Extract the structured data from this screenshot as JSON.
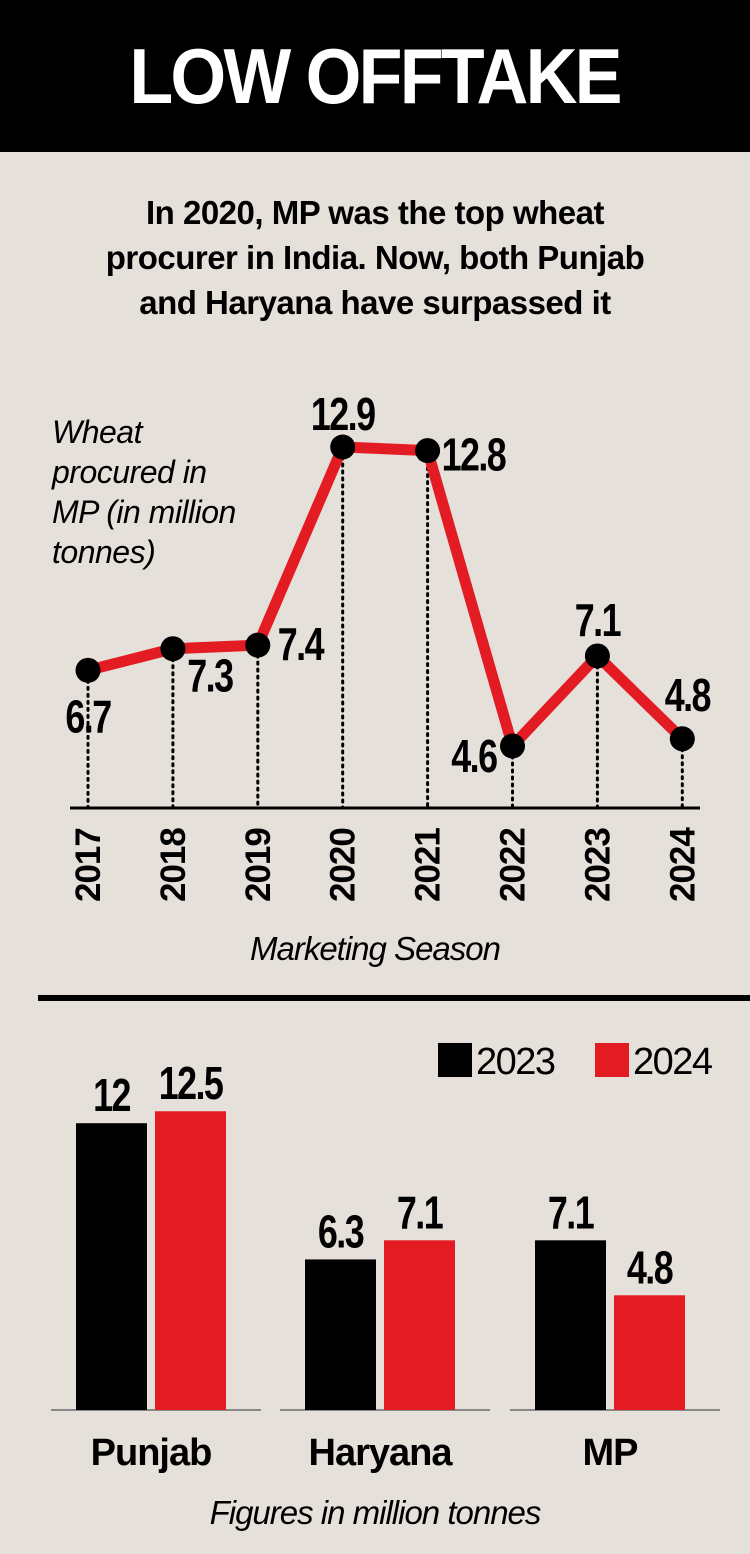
{
  "header": {
    "title": "LOW OFFTAKE"
  },
  "subtitle": [
    "In 2020, MP was the top wheat",
    "procurer in India. Now, both Punjab",
    "and Haryana have surpassed it"
  ],
  "colors": {
    "red": "#e31b23",
    "black": "#000000",
    "background": "#e5e0da"
  },
  "chart_data": [
    {
      "type": "line",
      "title": "Wheat procured in MP (in million tonnes)",
      "ylabel_lines": [
        "Wheat",
        "procured in",
        "MP (in million",
        "tonnes)"
      ],
      "xlabel": "Marketing Season",
      "x": [
        "2017",
        "2018",
        "2019",
        "2020",
        "2021",
        "2022",
        "2023",
        "2024"
      ],
      "values": [
        6.7,
        7.3,
        7.4,
        12.9,
        12.8,
        4.6,
        7.1,
        4.8
      ],
      "labels": [
        "6.7",
        "7.3",
        "7.4",
        "12.9",
        "12.8",
        "4.6",
        "7.1",
        "4.8"
      ],
      "grid": false,
      "series_color": "#e31b23"
    },
    {
      "type": "bar",
      "categories": [
        "Punjab",
        "Haryana",
        "MP"
      ],
      "series": [
        {
          "name": "2023",
          "color": "#000000",
          "values": [
            12,
            6.3,
            7.1
          ],
          "labels": [
            "12",
            "6.3",
            "7.1"
          ]
        },
        {
          "name": "2024",
          "color": "#e31b23",
          "values": [
            12.5,
            7.1,
            4.8
          ],
          "labels": [
            "12.5",
            "7.1",
            "4.8"
          ]
        }
      ],
      "legend": "top-right",
      "note": "Figures in million tonnes"
    }
  ]
}
